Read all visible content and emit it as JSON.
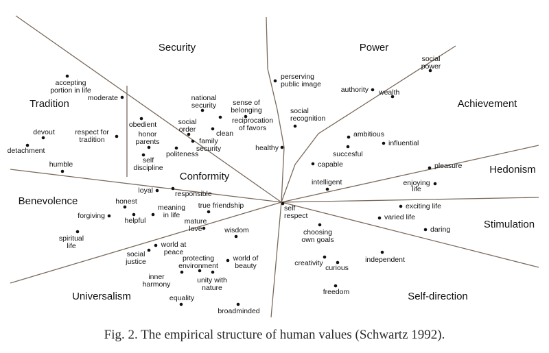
{
  "caption": "Fig. 2. The empirical structure of human values (Schwartz 1992).",
  "regions": [
    "Security",
    "Power",
    "Tradition",
    "Achievement",
    "Conformity",
    "Hedonism",
    "Benevolence",
    "Stimulation",
    "Universalism",
    "Self-direction"
  ],
  "values": [
    [
      "perserving",
      "public image"
    ],
    [
      "social",
      "power"
    ],
    [
      "authority"
    ],
    [
      "wealth"
    ],
    [
      "social",
      "recognition"
    ],
    [
      "ambitious"
    ],
    [
      "influential"
    ],
    [
      "succesful"
    ],
    [
      "capable"
    ],
    [
      "healthy"
    ],
    [
      "intelligent"
    ],
    [
      "pleasure"
    ],
    [
      "enjoying",
      "life"
    ],
    [
      "accepting",
      "portion in life"
    ],
    [
      "moderate"
    ],
    [
      "devout"
    ],
    [
      "respect for",
      "tradition"
    ],
    [
      "detachment"
    ],
    [
      "humble"
    ],
    [
      "obedient"
    ],
    [
      "honor",
      "parents"
    ],
    [
      "self",
      "discipline"
    ],
    [
      "politeness"
    ],
    [
      "national",
      "security"
    ],
    [
      "sense of",
      "belonging"
    ],
    [
      "social",
      "order"
    ],
    [
      "reciprocation",
      "of favors"
    ],
    [
      "clean"
    ],
    [
      "family",
      "security"
    ],
    [
      "loyal"
    ],
    [
      "responsible"
    ],
    [
      "honest"
    ],
    [
      "forgiving"
    ],
    [
      "helpful"
    ],
    [
      "meaning",
      "in life"
    ],
    [
      "true friendship"
    ],
    [
      "mature",
      "love"
    ],
    [
      "spiritual",
      "life"
    ],
    [
      "wisdom"
    ],
    [
      "social",
      "justice"
    ],
    [
      "world at",
      "peace"
    ],
    [
      "protecting",
      "environment"
    ],
    [
      "world of",
      "beauty"
    ],
    [
      "inner",
      "harmony"
    ],
    [
      "unity with",
      "nature"
    ],
    [
      "equality"
    ],
    [
      "broadminded"
    ],
    [
      "self",
      "respect"
    ],
    [
      "exciting life"
    ],
    [
      "varied life"
    ],
    [
      "daring"
    ],
    [
      "choosing",
      "own goals"
    ],
    [
      "creativity"
    ],
    [
      "curious"
    ],
    [
      "independent"
    ],
    [
      "freedom"
    ]
  ]
}
